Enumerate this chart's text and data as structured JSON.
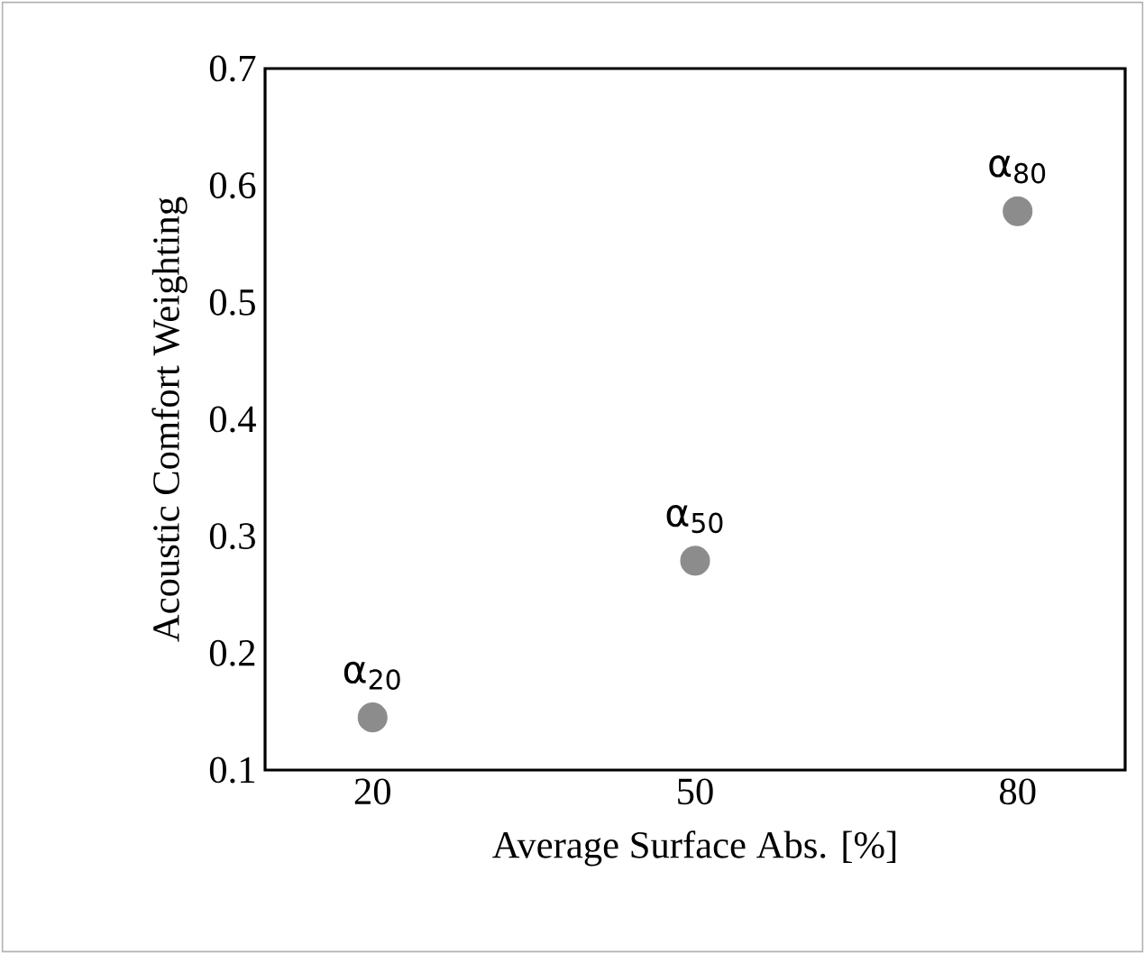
{
  "chart_data": {
    "type": "scatter",
    "xlabel": "Average Surface Abs. [%]",
    "ylabel": "Acoustic Comfort Weighting",
    "x": [
      20,
      50,
      80
    ],
    "series": [
      {
        "color": "#8c8c8c",
        "values": [
          0.145,
          0.279,
          0.578
        ]
      }
    ],
    "marker": "circle",
    "xlim": [
      10,
      90
    ],
    "xticks": [
      20,
      50,
      80
    ],
    "ylim": [
      0.1,
      0.7
    ],
    "yticks": [
      0.1,
      0.2,
      0.3,
      0.4,
      0.5,
      0.6,
      0.7
    ],
    "annotations": [
      {
        "text": "α$_{20}$",
        "x": 20,
        "y": 0.145
      },
      {
        "text": "α$_{50}$",
        "x": 50,
        "y": 0.279
      },
      {
        "text": "α$_{80}$",
        "x": 80,
        "y": 0.578
      }
    ],
    "grid": false
  }
}
